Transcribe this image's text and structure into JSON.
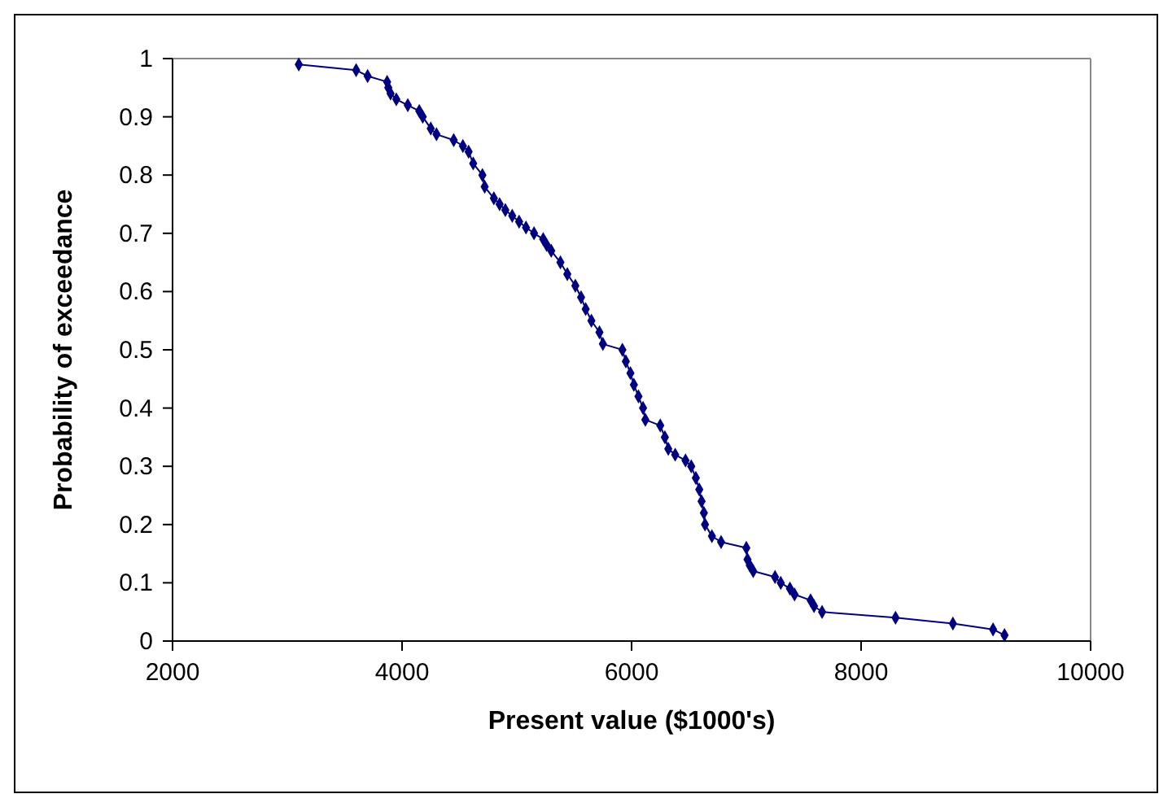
{
  "chart_data": {
    "type": "line",
    "xlabel": "Present value ($1000's)",
    "ylabel": "Probability of exceedance",
    "xlim": [
      2000,
      10000
    ],
    "xticks": [
      2000,
      4000,
      6000,
      8000,
      10000
    ],
    "ylim": [
      0,
      1
    ],
    "yticks": [
      0,
      0.1,
      0.2,
      0.3,
      0.4,
      0.5,
      0.6,
      0.7,
      0.8,
      0.9,
      1
    ],
    "grid": false,
    "marker": "diamond",
    "line_style": "solid",
    "series": [
      {
        "color": "#000080",
        "x": [
          3100,
          3600,
          3700,
          3870,
          3880,
          3900,
          3950,
          4050,
          4150,
          4180,
          4250,
          4300,
          4450,
          4530,
          4580,
          4620,
          4700,
          4720,
          4800,
          4850,
          4900,
          4960,
          5020,
          5080,
          5150,
          5230,
          5260,
          5300,
          5380,
          5440,
          5510,
          5560,
          5600,
          5650,
          5720,
          5750,
          5920,
          5950,
          5990,
          6020,
          6060,
          6100,
          6120,
          6250,
          6290,
          6320,
          6380,
          6470,
          6520,
          6560,
          6590,
          6610,
          6630,
          6640,
          6700,
          6780,
          7000,
          7010,
          7030,
          7060,
          7250,
          7300,
          7380,
          7420,
          7560,
          7590,
          7660,
          8300,
          8800,
          9150,
          9250
        ],
        "values": [
          0.99,
          0.98,
          0.97,
          0.96,
          0.95,
          0.94,
          0.93,
          0.92,
          0.91,
          0.9,
          0.88,
          0.87,
          0.86,
          0.85,
          0.84,
          0.82,
          0.8,
          0.78,
          0.76,
          0.75,
          0.74,
          0.73,
          0.72,
          0.71,
          0.7,
          0.69,
          0.68,
          0.67,
          0.65,
          0.63,
          0.61,
          0.59,
          0.57,
          0.55,
          0.53,
          0.51,
          0.5,
          0.48,
          0.46,
          0.44,
          0.42,
          0.4,
          0.38,
          0.37,
          0.35,
          0.33,
          0.32,
          0.31,
          0.3,
          0.28,
          0.26,
          0.24,
          0.22,
          0.2,
          0.18,
          0.17,
          0.16,
          0.14,
          0.13,
          0.12,
          0.11,
          0.1,
          0.09,
          0.08,
          0.07,
          0.06,
          0.05,
          0.04,
          0.03,
          0.02,
          0.01
        ]
      }
    ]
  }
}
